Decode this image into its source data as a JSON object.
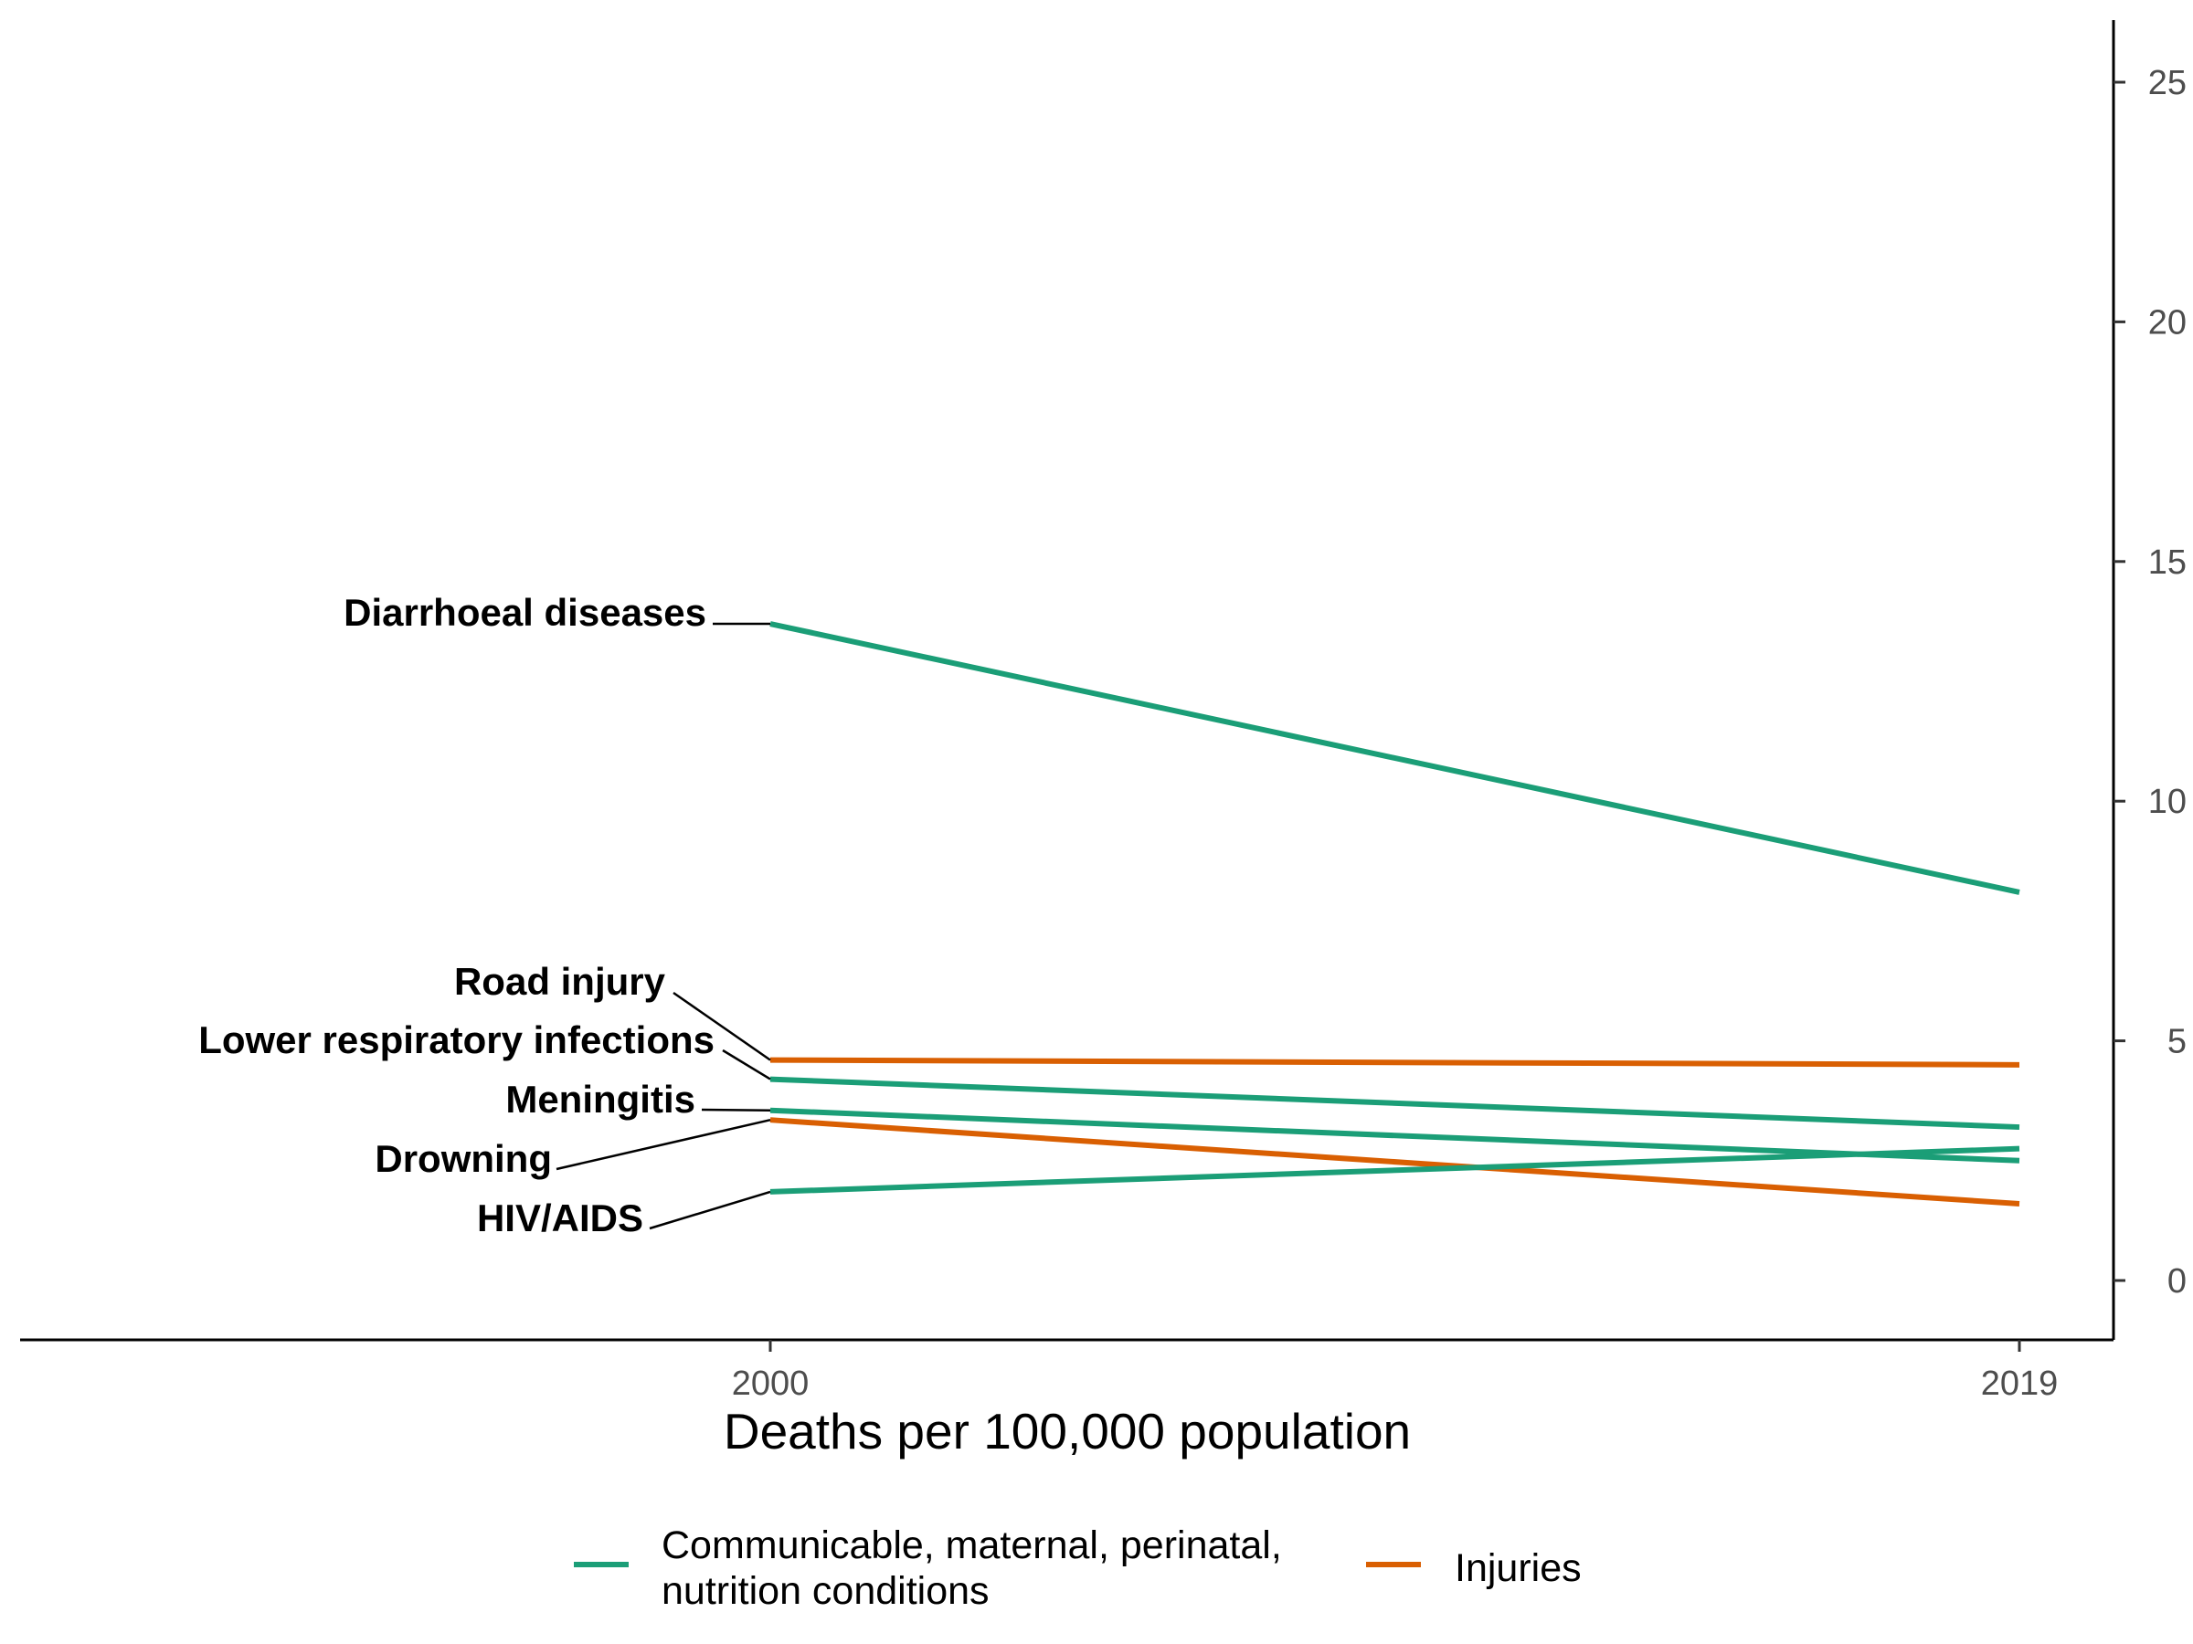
{
  "chart_data": {
    "type": "line",
    "x": [
      "2000",
      "2019"
    ],
    "xlabel": "Deaths per 100,000 population",
    "ylabel": "",
    "ylim": [
      -1.2,
      26.2
    ],
    "yticks": [
      0,
      5,
      10,
      15,
      20,
      25
    ],
    "y_axis_position": "right",
    "grid": false,
    "legend_position": "bottom",
    "groups": [
      {
        "name": "Communicable, maternal, perinatal, nutrition conditions",
        "name_lines": [
          "Communicable, maternal, perinatal,",
          "nutrition conditions"
        ],
        "color": "#1b9e77"
      },
      {
        "name": "Injuries",
        "name_lines": [
          "Injuries"
        ],
        "color": "#d95f02"
      }
    ],
    "series": [
      {
        "name": "Diarrhoeal diseases",
        "group": "Communicable, maternal, perinatal, nutrition conditions",
        "color": "#1b9e77",
        "values": [
          13.7,
          8.1
        ]
      },
      {
        "name": "Road injury",
        "group": "Injuries",
        "color": "#d95f02",
        "values": [
          4.6,
          4.5
        ]
      },
      {
        "name": "Lower respiratory infections",
        "group": "Communicable, maternal, perinatal, nutrition conditions",
        "color": "#1b9e77",
        "values": [
          4.2,
          3.2
        ]
      },
      {
        "name": "Meningitis",
        "group": "Communicable, maternal, perinatal, nutrition conditions",
        "color": "#1b9e77",
        "values": [
          3.55,
          2.5
        ]
      },
      {
        "name": "Drowning",
        "group": "Injuries",
        "color": "#d95f02",
        "values": [
          3.35,
          1.6
        ]
      },
      {
        "name": "HIV/AIDS",
        "group": "Communicable, maternal, perinatal, nutrition conditions",
        "color": "#1b9e77",
        "values": [
          1.85,
          2.75
        ]
      }
    ]
  }
}
